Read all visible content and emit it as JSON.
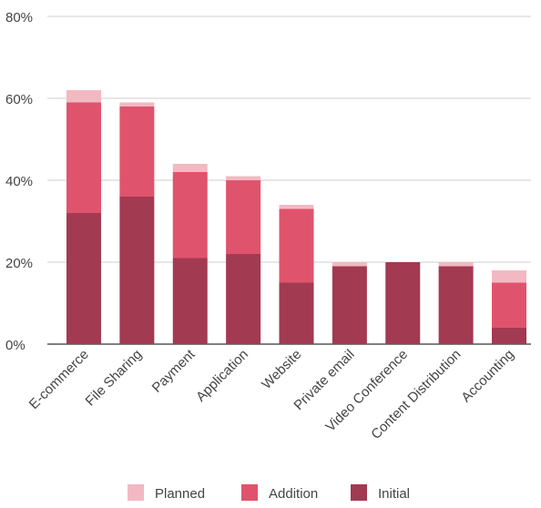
{
  "chart_data": {
    "type": "bar",
    "stacked": true,
    "title": "",
    "xlabel": "",
    "ylabel": "",
    "ylim": [
      0,
      80
    ],
    "y_ticks": [
      "0%",
      "20%",
      "40%",
      "60%",
      "80%"
    ],
    "grid": true,
    "legend_position": "bottom",
    "categories": [
      "E-commerce",
      "File Sharing",
      "Payment",
      "Application",
      "Website",
      "Private email",
      "Video Conference",
      "Content Distribution",
      "Accounting"
    ],
    "series": [
      {
        "name": "Initial",
        "color": "#a23a52",
        "values": [
          32,
          36,
          21,
          22,
          15,
          19,
          20,
          19,
          4
        ]
      },
      {
        "name": "Addition",
        "color": "#e0536d",
        "values": [
          27,
          22,
          21,
          18,
          18,
          0,
          0,
          0,
          11
        ]
      },
      {
        "name": "Planned",
        "color": "#f2b9c2",
        "values": [
          3,
          1,
          2,
          1,
          1,
          1,
          0,
          1,
          3
        ]
      }
    ],
    "legend": [
      "Planned",
      "Addition",
      "Initial"
    ]
  }
}
